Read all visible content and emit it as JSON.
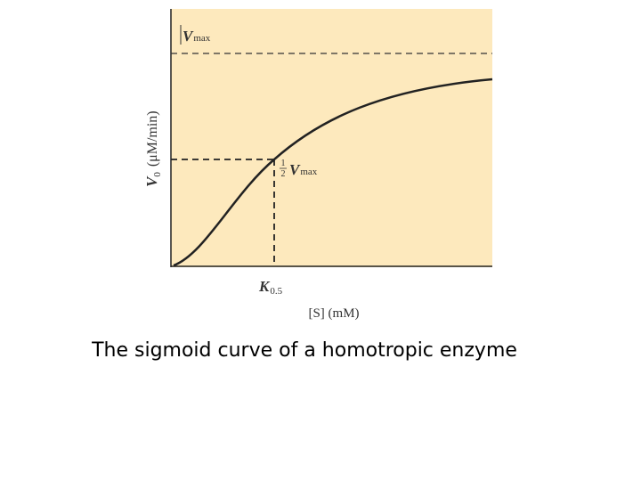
{
  "diagram": {
    "vmax_label": {
      "symbol": "V",
      "subscript": "max"
    },
    "half_vmax_label": {
      "numerator": "1",
      "denominator": "2",
      "symbol": "V",
      "subscript": "max"
    },
    "y_axis_label": {
      "symbol": "V",
      "subscript": "0",
      "unit": "(μM/min)"
    },
    "k_label": {
      "symbol": "K",
      "subscript": "0.5"
    },
    "x_axis_label": "[S] (mM)"
  },
  "caption": "The sigmoid curve of a homotropic enzyme"
}
